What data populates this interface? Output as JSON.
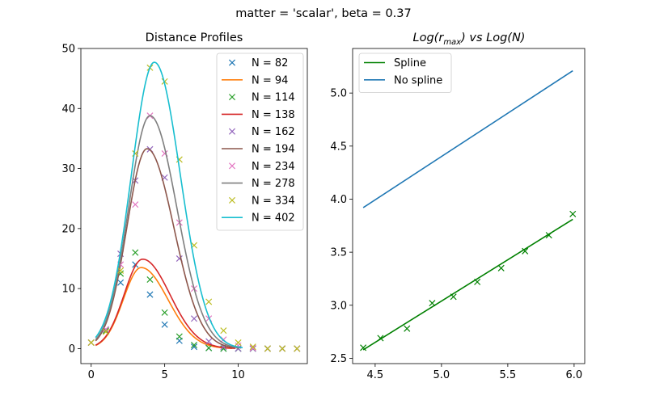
{
  "suptitle": "matter = 'scalar', beta = 0.37",
  "chart_data": [
    {
      "type": "line",
      "title": "Distance Profiles",
      "xlim": [
        -0.7,
        14.7
      ],
      "ylim": [
        -2.5,
        50
      ],
      "xticks": [
        0,
        5,
        10
      ],
      "yticks": [
        0,
        10,
        20,
        30,
        40,
        50
      ],
      "legend_position": "top-right",
      "scatter_x": [
        0,
        1,
        2,
        3,
        4,
        5,
        6,
        7,
        8,
        9,
        10,
        11,
        12,
        13,
        14
      ],
      "series": [
        {
          "name": "N = 82",
          "kind": "scatter",
          "color": "#1f77b4",
          "y": [
            1.0,
            3.0,
            11.0,
            14.0,
            9.0,
            4.0,
            1.3,
            0.3,
            0.1,
            0,
            0,
            0,
            0,
            0,
            0
          ]
        },
        {
          "name": "N = 94",
          "kind": "line",
          "color": "#ff7f0e",
          "peak_x": 3.4,
          "peak_y": 13.5,
          "end_x": 9.6
        },
        {
          "name": "N = 114",
          "kind": "scatter",
          "color": "#2ca02c",
          "y": [
            1.0,
            3.0,
            12.5,
            16.0,
            11.5,
            6.0,
            2.0,
            0.6,
            0.1,
            0,
            0,
            0,
            0,
            0,
            0
          ]
        },
        {
          "name": "N = 138",
          "kind": "line",
          "color": "#d62728",
          "peak_x": 3.5,
          "peak_y": 14.9,
          "end_x": 9.8
        },
        {
          "name": "N = 162",
          "kind": "scatter",
          "color": "#9467bd",
          "y": [
            1.0,
            3.2,
            15.8,
            28.0,
            33.2,
            28.5,
            15.0,
            5.0,
            1.2,
            0.3,
            0,
            0,
            0,
            0,
            0
          ]
        },
        {
          "name": "N = 194",
          "kind": "line",
          "color": "#8c564b",
          "peak_x": 3.8,
          "peak_y": 33.3,
          "end_x": 10.0
        },
        {
          "name": "N = 234",
          "kind": "scatter",
          "color": "#e377c2",
          "y": [
            1.0,
            3.2,
            14.0,
            24.0,
            38.8,
            32.5,
            21.0,
            10.0,
            5.0,
            1.5,
            0.5,
            0.1,
            0,
            0,
            0
          ]
        },
        {
          "name": "N = 278",
          "kind": "line",
          "color": "#7f7f7f",
          "peak_x": 4.0,
          "peak_y": 38.8,
          "end_x": 10.2
        },
        {
          "name": "N = 334",
          "kind": "scatter",
          "color": "#bcbd22",
          "y": [
            1.0,
            2.8,
            13.0,
            32.5,
            46.8,
            44.5,
            31.5,
            17.2,
            7.8,
            3.0,
            1.0,
            0.3,
            0,
            0,
            0
          ]
        },
        {
          "name": "N = 402",
          "kind": "line",
          "color": "#17becf",
          "peak_x": 4.3,
          "peak_y": 47.7,
          "end_x": 10.3
        }
      ]
    },
    {
      "type": "line",
      "title_parts": [
        "Log(",
        "r",
        "max",
        ") vs Log(",
        "N",
        ")"
      ],
      "xlim": [
        4.33,
        6.08
      ],
      "ylim": [
        2.45,
        5.42
      ],
      "xticks": [
        4.5,
        5.0,
        5.5,
        6.0
      ],
      "xtick_labels": [
        "4.5",
        "5.0",
        "5.5",
        "6.0"
      ],
      "yticks": [
        2.5,
        3.0,
        3.5,
        4.0,
        4.5,
        5.0
      ],
      "ytick_labels": [
        "2.5",
        "3.0",
        "3.5",
        "4.0",
        "4.5",
        "5.0"
      ],
      "legend_position": "top-left",
      "series": [
        {
          "name": "Spline",
          "kind": "line",
          "color": "#008000",
          "x": [
            4.41,
            5.99
          ],
          "y": [
            2.58,
            3.81
          ]
        },
        {
          "name": "No spline",
          "kind": "line",
          "color": "#1f77b4",
          "x": [
            4.41,
            5.99
          ],
          "y": [
            3.92,
            5.21
          ]
        },
        {
          "name": "",
          "kind": "scatter",
          "color": "#008000",
          "x": [
            4.41,
            4.54,
            4.74,
            4.93,
            5.09,
            5.27,
            5.45,
            5.63,
            5.81,
            5.99
          ],
          "y": [
            2.6,
            2.69,
            2.78,
            3.02,
            3.08,
            3.22,
            3.35,
            3.51,
            3.66,
            3.86
          ]
        }
      ]
    }
  ]
}
